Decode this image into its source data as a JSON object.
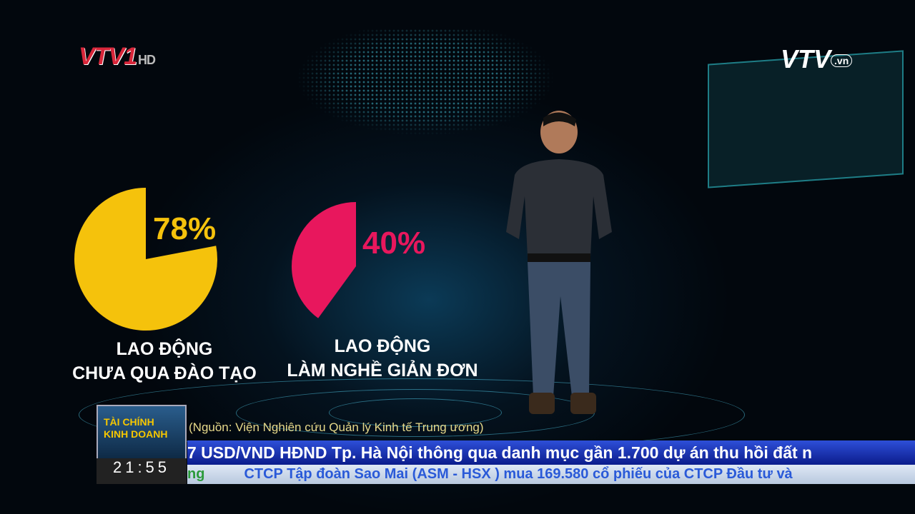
{
  "channel": {
    "logo": "VTV1",
    "hd": "HD",
    "site_logo": "VTV",
    "site_suffix": ".vn"
  },
  "chart_data": [
    {
      "type": "pie",
      "values": [
        78
      ],
      "data_label": "78%",
      "title": "LAO ĐỘNG\nCHƯA QUA ĐÀO TẠO",
      "color": "#f5c20c"
    },
    {
      "type": "pie",
      "values": [
        40
      ],
      "data_label": "40%",
      "title": "LAO ĐỘNG\nLÀM NGHỀ GIẢN ĐƠN",
      "color": "#e8175d"
    }
  ],
  "labels": {
    "chart1_line1": "LAO ĐỘNG",
    "chart1_line2": "CHƯA QUA ĐÀO TẠO",
    "chart2_line1": "LAO ĐỘNG",
    "chart2_line2": "LÀM NGHỀ GIẢN ĐƠN"
  },
  "source": "(Nguồn: Viện Nghiên cứu Quản lý Kinh tế Trung ương)",
  "program": {
    "name": "TÀI CHÍNH KINH DOANH",
    "time": "21:55"
  },
  "ticker": {
    "line1": "7 USD/VND      HĐND Tp. Hà Nội thông qua danh mục gần 1.700 dự án thu hồi đất n",
    "line2_prefix": "ng",
    "line2": "CTCP Tập đoàn Sao Mai (ASM - HSX ) mua 169.580 cổ phiếu của CTCP Đầu tư và"
  }
}
